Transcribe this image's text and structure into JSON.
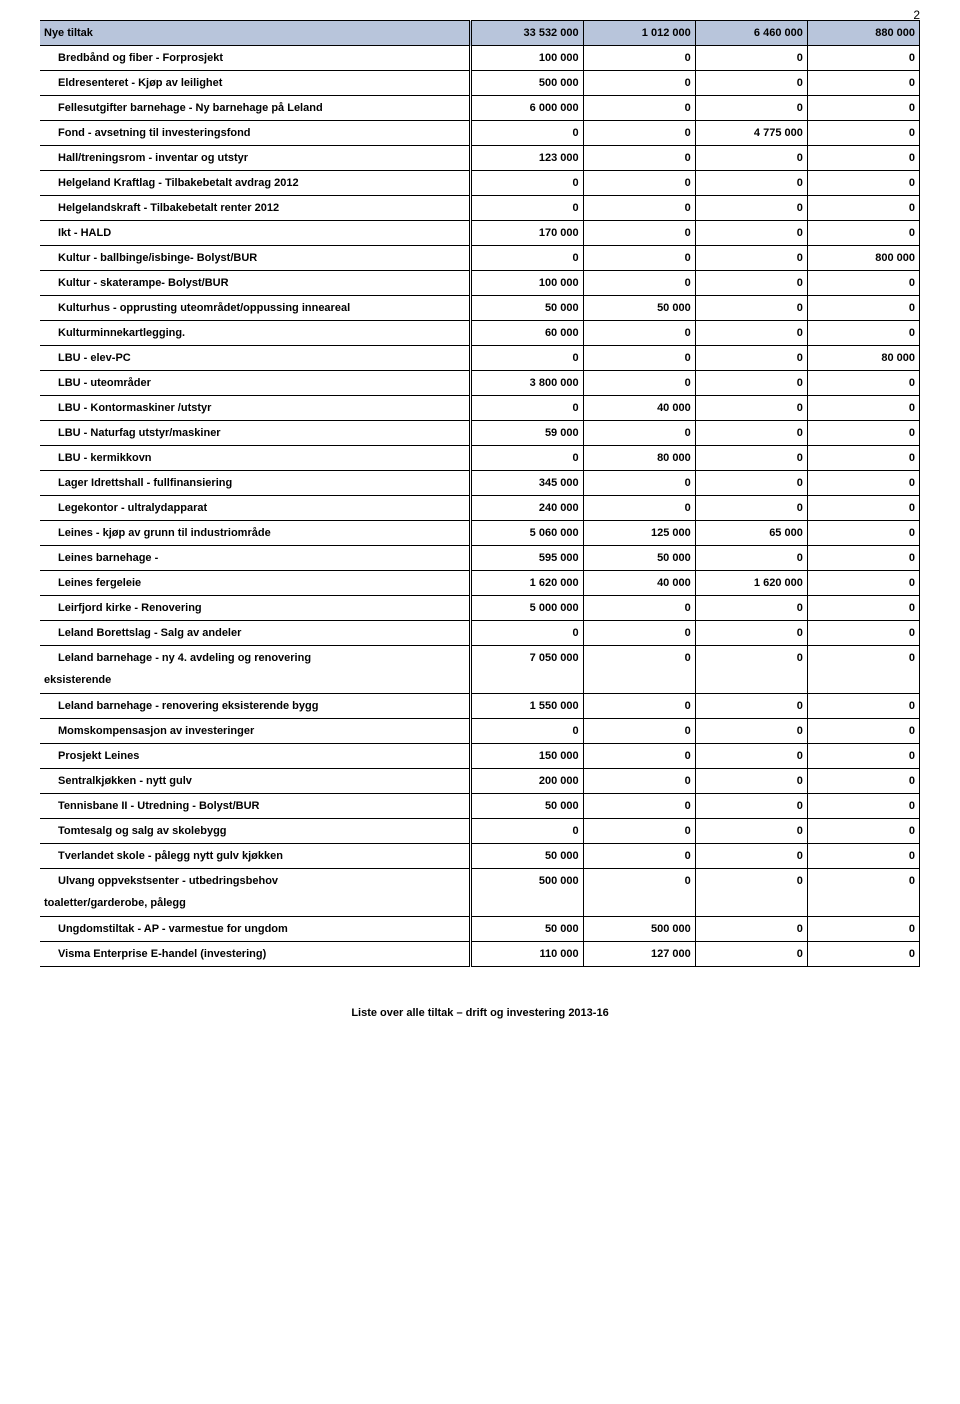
{
  "page_number": "2",
  "footer": "Liste over alle tiltak – drift og investering 2013-16",
  "header_bg": "#b8c5db",
  "header": {
    "label": "Nye tiltak",
    "c1": "33 532 000",
    "c2": "1 012 000",
    "c3": "6 460 000",
    "c4": "880 000"
  },
  "rows": [
    {
      "label": "Bredbånd og fiber - Forprosjekt",
      "c1": "100 000",
      "c2": "0",
      "c3": "0",
      "c4": "0"
    },
    {
      "label": "Eldresenteret - Kjøp av leilighet",
      "c1": "500 000",
      "c2": "0",
      "c3": "0",
      "c4": "0"
    },
    {
      "label": "Fellesutgifter barnehage - Ny barnehage på Leland",
      "c1": "6 000 000",
      "c2": "0",
      "c3": "0",
      "c4": "0"
    },
    {
      "label": "Fond - avsetning til investeringsfond",
      "c1": "0",
      "c2": "0",
      "c3": "4 775 000",
      "c4": "0"
    },
    {
      "label": "Hall/treningsrom - inventar og utstyr",
      "c1": "123 000",
      "c2": "0",
      "c3": "0",
      "c4": "0"
    },
    {
      "label": "Helgeland Kraftlag - Tilbakebetalt avdrag 2012",
      "c1": "0",
      "c2": "0",
      "c3": "0",
      "c4": "0"
    },
    {
      "label": "Helgelandskraft - Tilbakebetalt renter 2012",
      "c1": "0",
      "c2": "0",
      "c3": "0",
      "c4": "0"
    },
    {
      "label": "Ikt - HALD",
      "c1": "170 000",
      "c2": "0",
      "c3": "0",
      "c4": "0"
    },
    {
      "label": "Kultur    - ballbinge/isbinge- Bolyst/BUR",
      "c1": "0",
      "c2": "0",
      "c3": "0",
      "c4": "800 000"
    },
    {
      "label": "Kultur - skaterampe- Bolyst/BUR",
      "c1": "100 000",
      "c2": "0",
      "c3": "0",
      "c4": "0"
    },
    {
      "label": "Kulturhus - opprusting uteområdet/oppussing inneareal",
      "c1": "50 000",
      "c2": "50 000",
      "c3": "0",
      "c4": "0"
    },
    {
      "label": "Kulturminnekartlegging.",
      "c1": "60 000",
      "c2": "0",
      "c3": "0",
      "c4": "0"
    },
    {
      "label": "LBU -     elev-PC",
      "c1": "0",
      "c2": "0",
      "c3": "0",
      "c4": "80 000"
    },
    {
      "label": "LBU -   uteområder",
      "c1": "3 800 000",
      "c2": "0",
      "c3": "0",
      "c4": "0"
    },
    {
      "label": "LBU - Kontormaskiner /utstyr",
      "c1": "0",
      "c2": "40 000",
      "c3": "0",
      "c4": "0"
    },
    {
      "label": "LBU - Naturfag utstyr/maskiner",
      "c1": "59 000",
      "c2": "0",
      "c3": "0",
      "c4": "0"
    },
    {
      "label": "LBU - kermikkovn",
      "c1": "0",
      "c2": "80 000",
      "c3": "0",
      "c4": "0"
    },
    {
      "label": "Lager Idrettshall - fullfinansiering",
      "c1": "345 000",
      "c2": "0",
      "c3": "0",
      "c4": "0"
    },
    {
      "label": "Legekontor - ultralydapparat",
      "c1": "240 000",
      "c2": "0",
      "c3": "0",
      "c4": "0"
    },
    {
      "label": "Leines - kjøp av grunn til industriområde",
      "c1": "5 060 000",
      "c2": "125 000",
      "c3": "65 000",
      "c4": "0"
    },
    {
      "label": "Leines barnehage -",
      "c1": "595 000",
      "c2": "50 000",
      "c3": "0",
      "c4": "0"
    },
    {
      "label": "Leines fergeleie",
      "c1": "1 620 000",
      "c2": "40 000",
      "c3": "1 620 000",
      "c4": "0"
    },
    {
      "label": "Leirfjord kirke - Renovering",
      "c1": "5 000 000",
      "c2": "0",
      "c3": "0",
      "c4": "0"
    },
    {
      "label": "Leland Borettslag - Salg av andeler",
      "c1": "0",
      "c2": "0",
      "c3": "0",
      "c4": "0"
    },
    {
      "label_line1": "Leland barnehage - ny 4. avdeling og renovering",
      "label_line2": "eksisterende",
      "c1": "7 050 000",
      "c2": "0",
      "c3": "0",
      "c4": "0",
      "twoline": true
    },
    {
      "label": "Leland barnehage - renovering eksisterende bygg",
      "c1": "1 550 000",
      "c2": "0",
      "c3": "0",
      "c4": "0"
    },
    {
      "label": "Momskompensasjon av investeringer",
      "c1": "0",
      "c2": "0",
      "c3": "0",
      "c4": "0"
    },
    {
      "label": "Prosjekt Leines",
      "c1": "150 000",
      "c2": "0",
      "c3": "0",
      "c4": "0"
    },
    {
      "label": "Sentralkjøkken - nytt gulv",
      "c1": "200 000",
      "c2": "0",
      "c3": "0",
      "c4": "0"
    },
    {
      "label": "Tennisbane II - Utredning - Bolyst/BUR",
      "c1": "50 000",
      "c2": "0",
      "c3": "0",
      "c4": "0"
    },
    {
      "label": "Tomtesalg og salg av skolebygg",
      "c1": "0",
      "c2": "0",
      "c3": "0",
      "c4": "0"
    },
    {
      "label": "Tverlandet skole - pålegg nytt gulv kjøkken",
      "c1": "50 000",
      "c2": "0",
      "c3": "0",
      "c4": "0"
    },
    {
      "label_line1": "Ulvang oppvekstsenter - utbedringsbehov",
      "label_line2": "toaletter/garderobe, pålegg",
      "c1": "500 000",
      "c2": "0",
      "c3": "0",
      "c4": "0",
      "twoline": true
    },
    {
      "label": "Ungdomstiltak - AP - varmestue for ungdom",
      "c1": "50 000",
      "c2": "500 000",
      "c3": "0",
      "c4": "0"
    },
    {
      "label": "Visma Enterprise E-handel (investering)",
      "c1": "110 000",
      "c2": "127 000",
      "c3": "0",
      "c4": "0"
    }
  ]
}
